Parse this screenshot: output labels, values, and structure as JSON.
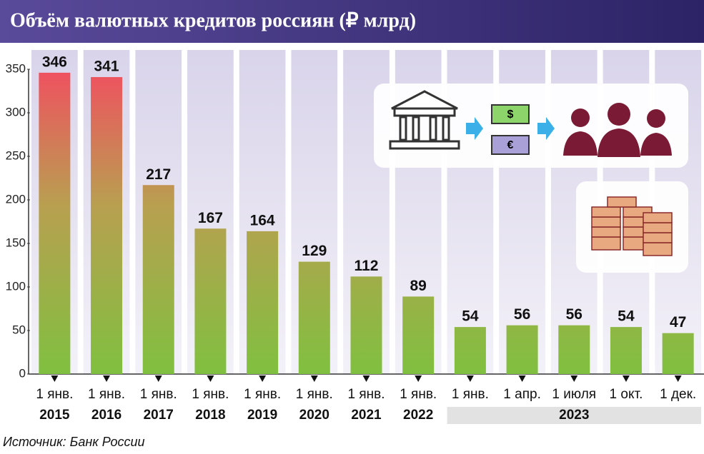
{
  "chart_data": {
    "type": "bar",
    "title": "Объём валютных кредитов россиян (₽ млрд)",
    "categories": [
      "1 янв.",
      "1 янв.",
      "1 янв.",
      "1 янв.",
      "1 янв.",
      "1 янв.",
      "1 янв.",
      "1 янв.",
      "1 янв.",
      "1 апр.",
      "1 июля",
      "1 окт.",
      "1 дек."
    ],
    "years": [
      "2015",
      "2016",
      "2017",
      "2018",
      "2019",
      "2020",
      "2021",
      "2022",
      null,
      null,
      null,
      null,
      null
    ],
    "group_label": "2023",
    "values": [
      346,
      341,
      217,
      167,
      164,
      129,
      112,
      89,
      54,
      56,
      56,
      54,
      47
    ],
    "ylim": [
      0,
      350
    ],
    "yticks": [
      0,
      50,
      100,
      150,
      200,
      250,
      300,
      350
    ],
    "source": "Источник: Банк России"
  }
}
